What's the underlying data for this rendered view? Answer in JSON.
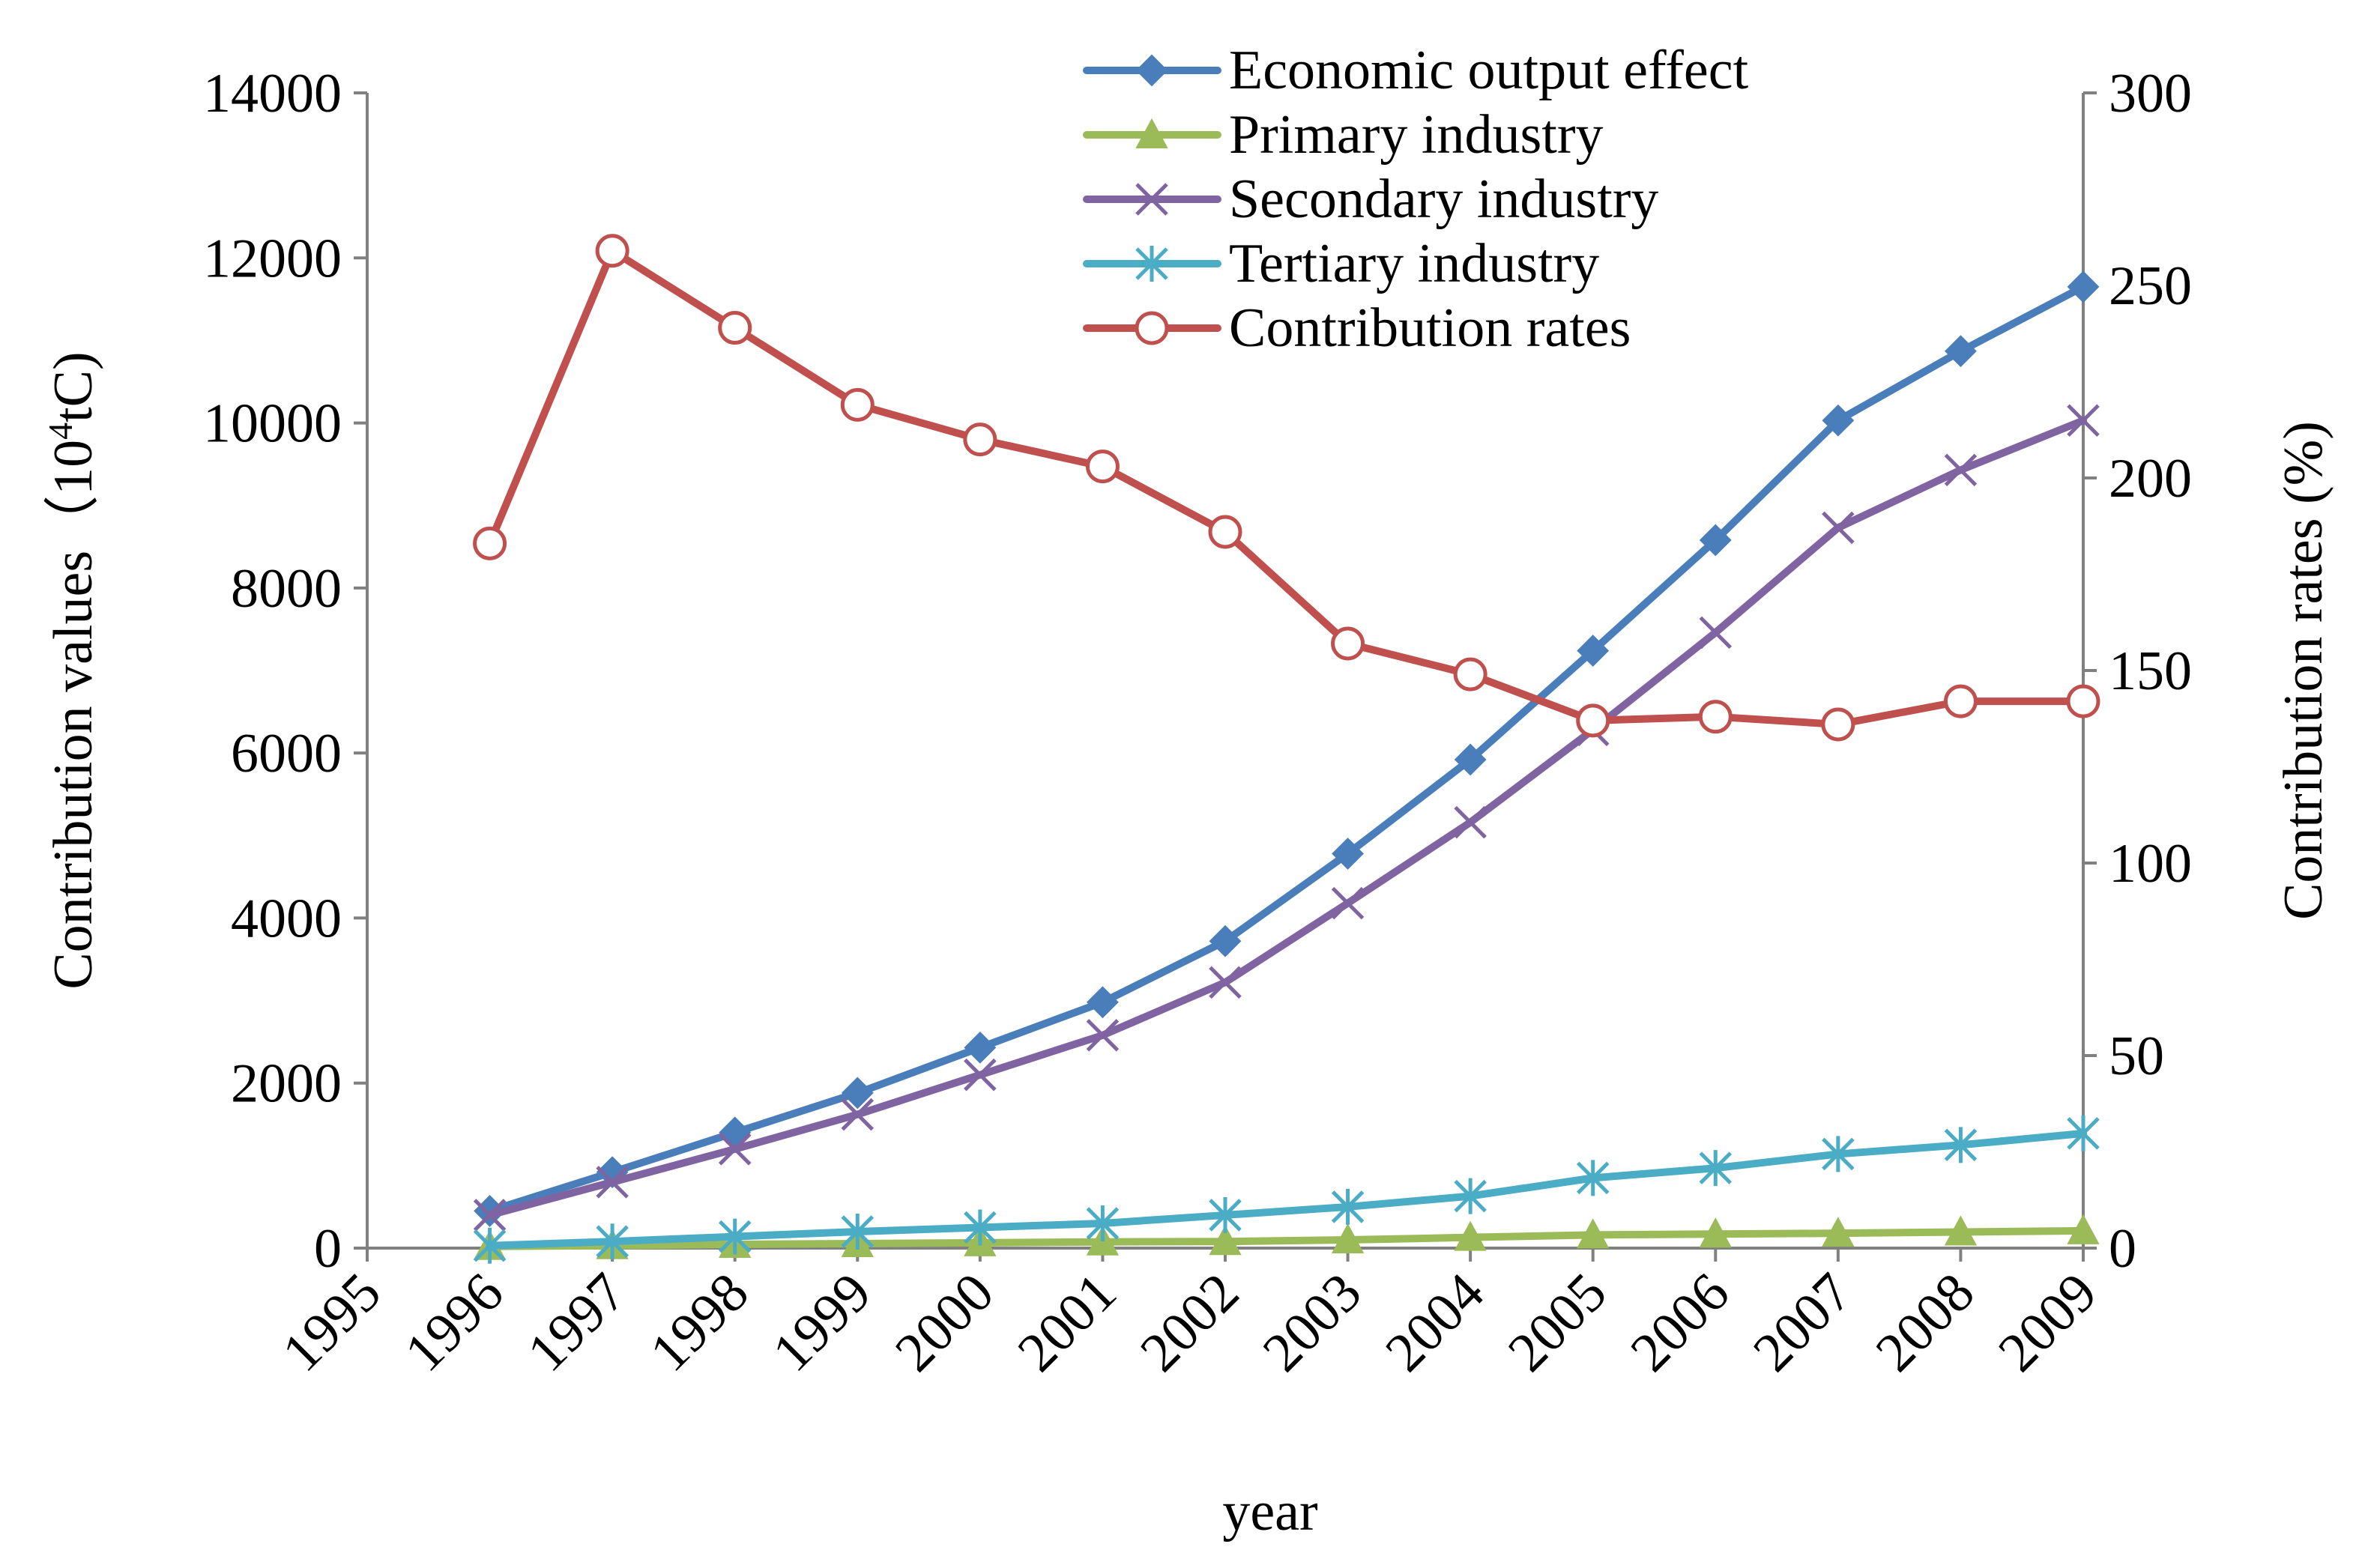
{
  "chart_data": {
    "type": "line",
    "x_axis": {
      "label": "year",
      "ticks": [
        "1995",
        "1996",
        "1997",
        "1998",
        "1999",
        "2000",
        "2001",
        "2002",
        "2003",
        "2004",
        "2005",
        "2006",
        "2007",
        "2008",
        "2009"
      ]
    },
    "y_axis_left": {
      "label_main": "Contribution  values（10",
      "label_sup": "4",
      "label_tail": "tC)",
      "ylim": [
        0,
        14000
      ],
      "ticks": [
        "0",
        "2000",
        "4000",
        "6000",
        "8000",
        "10000",
        "12000",
        "14000"
      ]
    },
    "y_axis_right": {
      "label": "Contribution rates (%)",
      "ylim": [
        0,
        300
      ],
      "ticks": [
        "0",
        "50",
        "100",
        "150",
        "200",
        "250",
        "300"
      ]
    },
    "x": [
      "1996",
      "1997",
      "1998",
      "1999",
      "2000",
      "2001",
      "2002",
      "2003",
      "2004",
      "2005",
      "2006",
      "2007",
      "2008",
      "2009"
    ],
    "series": [
      {
        "name": "Economic output effect",
        "axis": "left",
        "color": "#4a7ebb",
        "marker": "diamond",
        "values": [
          450,
          920,
          1400,
          1880,
          2430,
          2980,
          3720,
          4780,
          5920,
          7240,
          8580,
          10030,
          10870,
          11650
        ]
      },
      {
        "name": "Primary industry",
        "axis": "left",
        "color": "#9bbb59",
        "marker": "triangle",
        "values": [
          20,
          30,
          45,
          55,
          65,
          75,
          80,
          100,
          130,
          160,
          170,
          180,
          195,
          210
        ]
      },
      {
        "name": "Secondary industry",
        "axis": "left",
        "color": "#8064a2",
        "marker": "x",
        "values": [
          400,
          800,
          1200,
          1620,
          2100,
          2580,
          3220,
          4180,
          5160,
          6280,
          7460,
          8730,
          9430,
          10030
        ]
      },
      {
        "name": "Tertiary industry",
        "axis": "left",
        "color": "#4bacc6",
        "marker": "star",
        "values": [
          30,
          80,
          140,
          200,
          250,
          300,
          400,
          500,
          630,
          850,
          970,
          1140,
          1250,
          1390
        ]
      },
      {
        "name": "Contribution rates",
        "axis": "right",
        "color": "#c0504d",
        "marker": "circle",
        "values": [
          183,
          259,
          239,
          219,
          210,
          203,
          186,
          157,
          149,
          137,
          138,
          136,
          142,
          142
        ]
      }
    ],
    "legend_position": "top-center",
    "grid": false
  }
}
